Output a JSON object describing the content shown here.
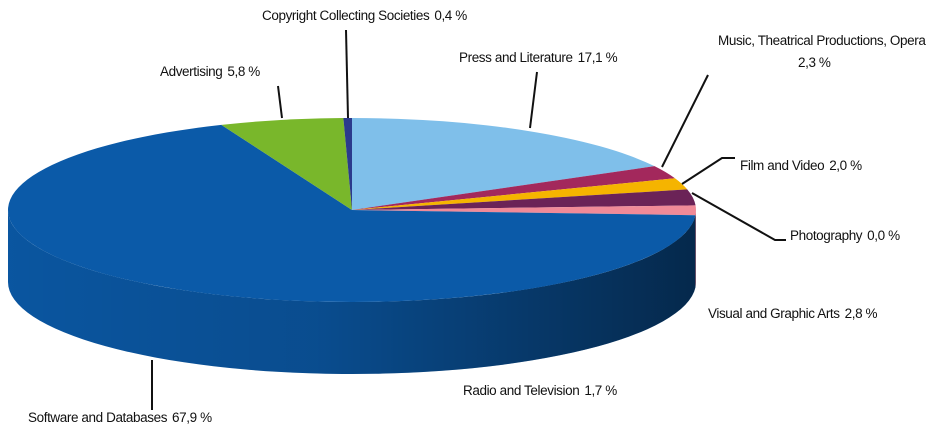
{
  "chart_data": {
    "type": "pie3d",
    "categories": [
      "Press and Literature",
      "Music, Theatrical Productions, Opera",
      "Film and Video",
      "Photography",
      "Visual and Graphic Arts",
      "Radio and Television",
      "Software and Databases",
      "Advertising",
      "Copyright Collecting Societies"
    ],
    "values": [
      17.1,
      2.3,
      2.0,
      0.0,
      2.8,
      1.7,
      67.9,
      5.8,
      0.4
    ],
    "value_labels": [
      "17,1 %",
      "2,3 %",
      "2,0 %",
      "0,0 %",
      "2,8 %",
      "1,7 %",
      "67,9 %",
      "5,8 %",
      "0,4 %"
    ],
    "colors": [
      "#7fbfea",
      "#a3285c",
      "#f5b400",
      "#e8798b",
      "#6b2357",
      "#f08a98",
      "#0b5aa8",
      "#79b72b",
      "#2b3a8c"
    ]
  }
}
